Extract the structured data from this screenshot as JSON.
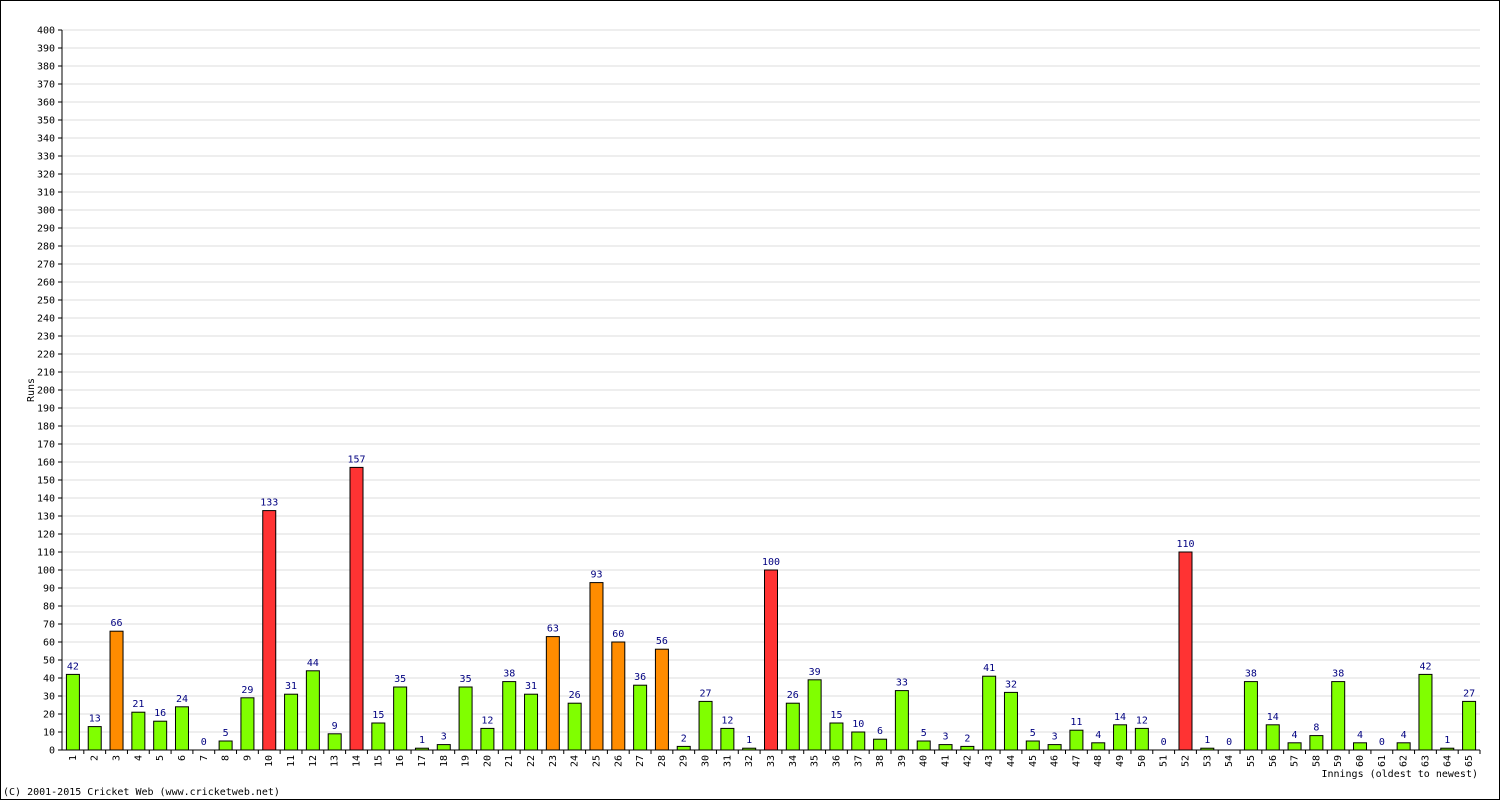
{
  "chart_data": {
    "type": "bar",
    "y_label": "Runs",
    "x_label": "Innings (oldest to newest)",
    "footer": "(C) 2001-2015 Cricket Web (www.cricketweb.net)",
    "categories": [
      "1",
      "2",
      "3",
      "4",
      "5",
      "6",
      "7",
      "8",
      "9",
      "10",
      "11",
      "12",
      "13",
      "14",
      "15",
      "16",
      "17",
      "18",
      "19",
      "20",
      "21",
      "22",
      "23",
      "24",
      "25",
      "26",
      "27",
      "28",
      "29",
      "30",
      "31",
      "32",
      "33",
      "34",
      "35",
      "36",
      "37",
      "38",
      "39",
      "40",
      "41",
      "42",
      "43",
      "44",
      "45",
      "46",
      "47",
      "48",
      "49",
      "50",
      "51",
      "52",
      "53",
      "54",
      "55",
      "56",
      "57",
      "58",
      "59",
      "60",
      "61",
      "62",
      "63",
      "64",
      "65"
    ],
    "values": [
      42,
      13,
      66,
      21,
      16,
      24,
      0,
      5,
      29,
      133,
      31,
      44,
      9,
      157,
      15,
      35,
      1,
      3,
      35,
      12,
      38,
      31,
      63,
      26,
      93,
      60,
      36,
      56,
      2,
      27,
      12,
      1,
      100,
      26,
      39,
      15,
      10,
      6,
      33,
      5,
      3,
      2,
      41,
      32,
      5,
      3,
      11,
      4,
      14,
      12,
      0,
      110,
      1,
      0,
      38,
      14,
      4,
      8,
      38,
      4,
      0,
      4,
      42,
      1,
      27
    ],
    "colors": [
      "#80ff00",
      "#80ff00",
      "#ff8c00",
      "#80ff00",
      "#80ff00",
      "#80ff00",
      "#80ff00",
      "#80ff00",
      "#80ff00",
      "#ff3333",
      "#80ff00",
      "#80ff00",
      "#80ff00",
      "#ff3333",
      "#80ff00",
      "#80ff00",
      "#80ff00",
      "#80ff00",
      "#80ff00",
      "#80ff00",
      "#80ff00",
      "#80ff00",
      "#ff8c00",
      "#80ff00",
      "#ff8c00",
      "#ff8c00",
      "#80ff00",
      "#ff8c00",
      "#80ff00",
      "#80ff00",
      "#80ff00",
      "#80ff00",
      "#ff3333",
      "#80ff00",
      "#80ff00",
      "#80ff00",
      "#80ff00",
      "#80ff00",
      "#80ff00",
      "#80ff00",
      "#80ff00",
      "#80ff00",
      "#80ff00",
      "#80ff00",
      "#80ff00",
      "#80ff00",
      "#80ff00",
      "#80ff00",
      "#80ff00",
      "#80ff00",
      "#80ff00",
      "#ff3333",
      "#80ff00",
      "#80ff00",
      "#80ff00",
      "#80ff00",
      "#80ff00",
      "#80ff00",
      "#80ff00",
      "#80ff00",
      "#80ff00",
      "#80ff00",
      "#80ff00",
      "#80ff00",
      "#80ff00"
    ],
    "ylim": [
      0,
      400
    ],
    "yticks": [
      0,
      10,
      20,
      30,
      40,
      50,
      60,
      70,
      80,
      90,
      100,
      110,
      120,
      130,
      140,
      150,
      160,
      170,
      180,
      190,
      200,
      210,
      220,
      230,
      240,
      250,
      260,
      270,
      280,
      290,
      300,
      310,
      320,
      330,
      340,
      350,
      360,
      370,
      380,
      390,
      400
    ],
    "grid": true
  }
}
